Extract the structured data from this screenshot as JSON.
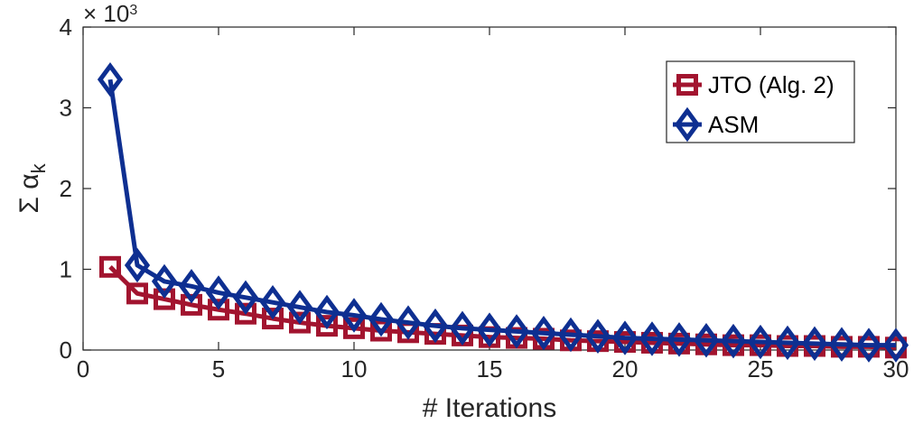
{
  "chart_data": {
    "type": "line",
    "title": "",
    "xlabel": "# Iterations",
    "ylabel": "Σ α",
    "ylabel_subscript": "k",
    "y_multiplier": "× 10",
    "y_multiplier_exponent": "3",
    "xlim": [
      0,
      30
    ],
    "ylim": [
      0,
      4
    ],
    "x_ticks": [
      "0",
      "5",
      "10",
      "15",
      "20",
      "25",
      "30"
    ],
    "y_ticks": [
      "0",
      "1",
      "2",
      "3",
      "4"
    ],
    "grid": false,
    "legend_position": "top-right",
    "x": [
      1,
      2,
      3,
      4,
      5,
      6,
      7,
      8,
      9,
      10,
      11,
      12,
      13,
      14,
      15,
      16,
      17,
      18,
      19,
      20,
      21,
      22,
      23,
      24,
      25,
      26,
      27,
      28,
      29,
      30
    ],
    "series": [
      {
        "name": "JTO (Alg. 2)",
        "color": "#a2142f",
        "marker": "square",
        "values": [
          1.03,
          0.7,
          0.63,
          0.56,
          0.5,
          0.45,
          0.39,
          0.34,
          0.3,
          0.27,
          0.24,
          0.22,
          0.2,
          0.18,
          0.16,
          0.15,
          0.14,
          0.12,
          0.11,
          0.1,
          0.09,
          0.08,
          0.07,
          0.06,
          0.06,
          0.05,
          0.05,
          0.04,
          0.04,
          0.03
        ]
      },
      {
        "name": "ASM",
        "color": "#0e2f91",
        "marker": "diamond",
        "values": [
          3.35,
          1.05,
          0.85,
          0.79,
          0.71,
          0.65,
          0.59,
          0.53,
          0.47,
          0.43,
          0.38,
          0.34,
          0.3,
          0.27,
          0.25,
          0.23,
          0.21,
          0.19,
          0.17,
          0.15,
          0.14,
          0.13,
          0.12,
          0.11,
          0.1,
          0.09,
          0.08,
          0.07,
          0.06,
          0.06
        ]
      }
    ]
  }
}
